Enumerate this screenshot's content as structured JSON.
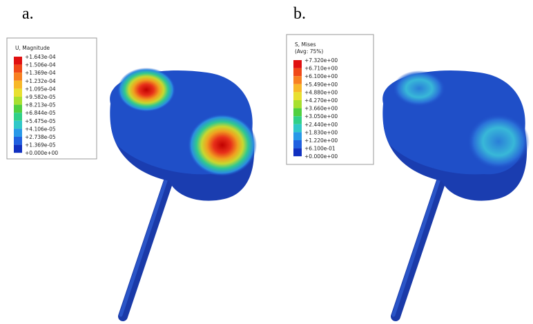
{
  "panels": [
    {
      "label": "a.",
      "legend_title": [
        "U, Magnitude"
      ],
      "legend_labels": [
        "+1.643e-04",
        "+1.506e-04",
        "+1.369e-04",
        "+1.232e-04",
        "+1.095e-04",
        "+9.582e-05",
        "+8.213e-05",
        "+6.844e-05",
        "+5.475e-05",
        "+4.106e-05",
        "+2.738e-05",
        "+1.369e-05",
        "+0.000e+00"
      ]
    },
    {
      "label": "b.",
      "legend_title": [
        "S, Mises",
        "(Avg: 75%)"
      ],
      "legend_labels": [
        "+7.320e+00",
        "+6.710e+00",
        "+6.100e+00",
        "+5.490e+00",
        "+4.880e+00",
        "+4.270e+00",
        "+3.660e+00",
        "+3.050e+00",
        "+2.440e+00",
        "+1.830e+00",
        "+1.220e+00",
        "+6.100e-01",
        "+0.000e+00"
      ]
    }
  ]
}
